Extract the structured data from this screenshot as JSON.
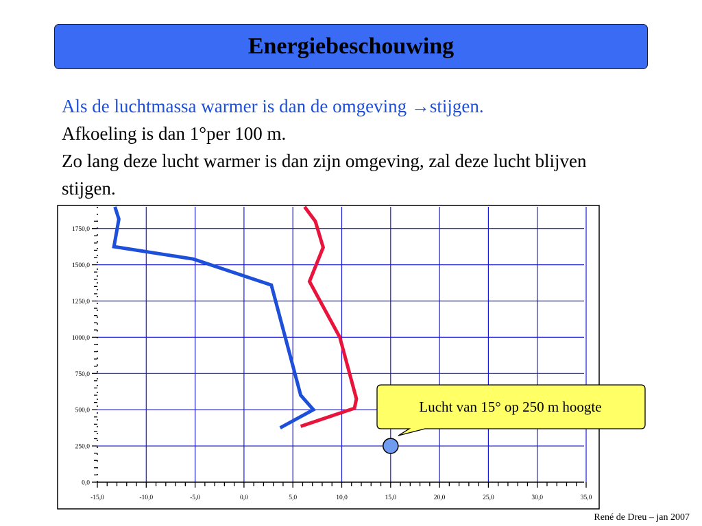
{
  "slide": {
    "title": "Energiebeschouwing",
    "lines": [
      "Als de luchtmassa warmer is dan de omgeving →stijgen.",
      "Afkoeling is dan  1°per 100 m.",
      "Zo lang deze lucht warmer is dan zijn omgeving, zal deze lucht blijven stijgen."
    ],
    "footer": "René de Dreu – jan 2007"
  },
  "colors": {
    "title_bg": "#3a6bf5",
    "grid": "#1a1ad6",
    "environment_line": "#1e4fd8",
    "parcel_line": "#e8143c",
    "callout_bg": "#ffff66",
    "parcel_marker": "#6f9bf0"
  },
  "chart_data": {
    "type": "line",
    "x_ticks": [
      "-15,0",
      "-10,0",
      "-5,0",
      "0,0",
      "5,0",
      "10,0",
      "15,0",
      "20,0",
      "25,0",
      "30,0",
      "35,0"
    ],
    "y_ticks": [
      "0,0",
      "250,0",
      "500,0",
      "750,0",
      "1000,0",
      "1250,0",
      "1500,0",
      "1750,0"
    ],
    "xlim": [
      -15,
      35
    ],
    "ylim": [
      0,
      1900
    ],
    "grid": true,
    "series": [
      {
        "color": "#1e4fd8",
        "points": [
          [
            3.7,
            375
          ],
          [
            7.1,
            500
          ],
          [
            5.8,
            600
          ],
          [
            2.8,
            1360
          ],
          [
            -5.2,
            1540
          ],
          [
            -13.3,
            1625
          ],
          [
            -12.8,
            1815
          ],
          [
            -13.2,
            1900
          ]
        ]
      },
      {
        "color": "#e8143c",
        "points": [
          [
            5.8,
            385
          ],
          [
            11.3,
            510
          ],
          [
            11.5,
            575
          ],
          [
            9.8,
            1000
          ],
          [
            6.7,
            1385
          ],
          [
            8.1,
            1620
          ],
          [
            7.3,
            1800
          ],
          [
            6.2,
            1900
          ]
        ]
      }
    ],
    "annotations": [
      {
        "text": "Lucht van 15° op 250 m hoogte",
        "x": 15.0,
        "y": 250
      }
    ]
  }
}
